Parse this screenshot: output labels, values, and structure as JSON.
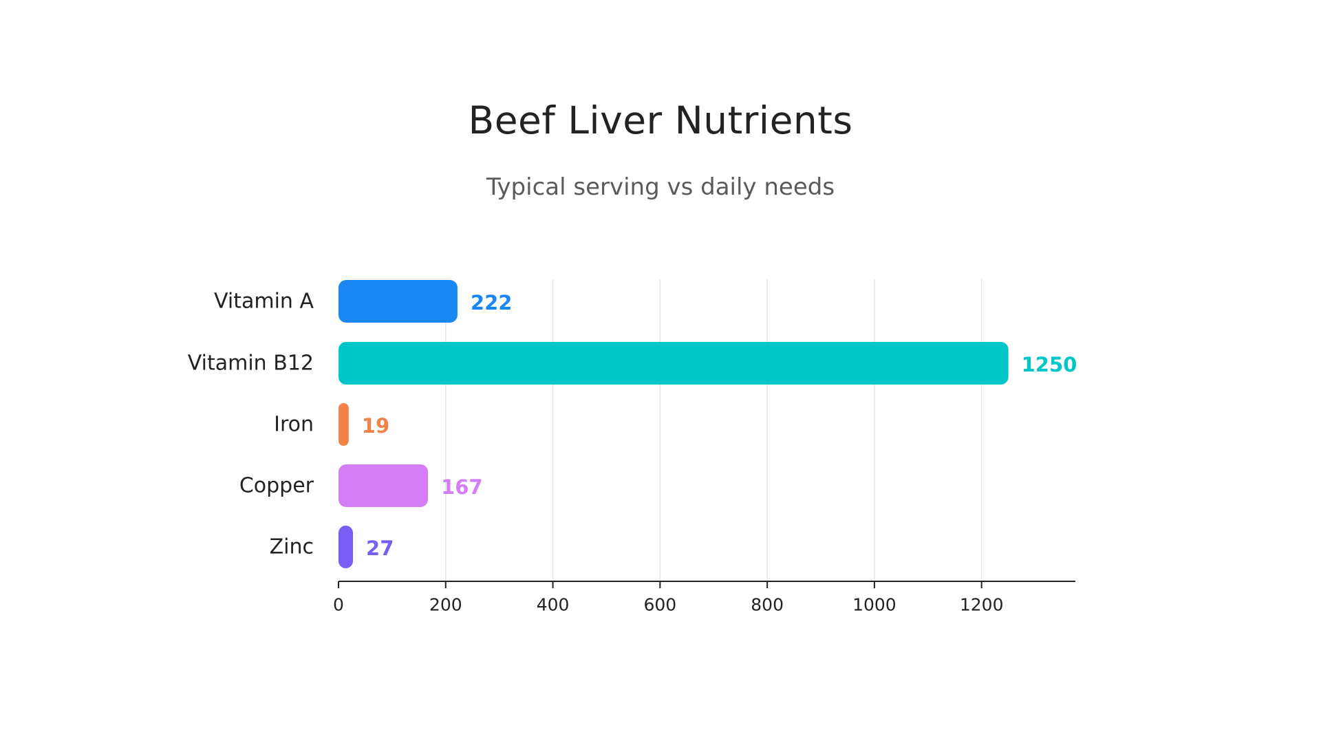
{
  "chart_data": {
    "type": "bar",
    "orientation": "horizontal",
    "title": "Beef Liver Nutrients",
    "subtitle": "Typical serving vs daily needs",
    "xlabel": "",
    "ylabel": "",
    "categories": [
      "Vitamin A",
      "Vitamin B12",
      "Iron",
      "Copper",
      "Zinc"
    ],
    "values": [
      222,
      1250,
      19,
      167,
      27
    ],
    "value_labels": [
      "222",
      "1250",
      "19",
      "167",
      "27"
    ],
    "colors": [
      "#1a87f5",
      "#00c7c7",
      "#f0824a",
      "#d37ef7",
      "#7a5df5"
    ],
    "xlim": [
      0,
      1375
    ],
    "xticks": [
      0,
      200,
      400,
      600,
      800,
      1000,
      1200
    ],
    "xtick_labels": [
      "0",
      "200",
      "400",
      "600",
      "800",
      "1000",
      "1200"
    ],
    "grid": true,
    "legend": "none"
  }
}
